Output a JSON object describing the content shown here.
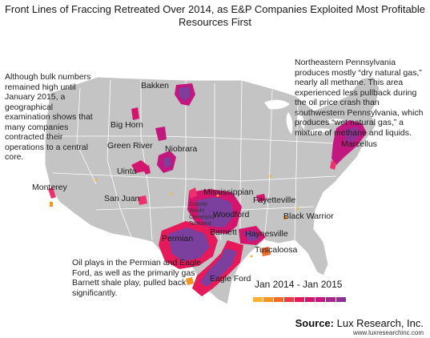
{
  "title": "Front Lines of Fraccing Retreated Over 2014, as E&P Companies Exploited Most Profitable Resources First",
  "notes": {
    "left": "Although bulk numbers remained high until January 2015, a geographical examination shows that many companies contracted their operations to a central core.",
    "right": "Northeastern Pennsylvania produces mostly “dry natural gas,” nearly all methane. This area experienced less pullback during the oil price crash than southwestern Pennsylvania, which produces “wet natural gas,” a mixture of methane and liquids.",
    "bottom": "Oil plays in the Permian and Eagle Ford, as well as the primarily gas Barnett shale play, pulled back significantly."
  },
  "plays": {
    "bakken": "Bakken",
    "big_horn": "Big Horn",
    "green_river": "Green River",
    "niobrara": "Niobrara",
    "uinta": "Uinta",
    "monterey": "Monterey",
    "san_juan": "San Juan",
    "mississippian": "Mississippian",
    "granite_wash": "Granite Wash/ Cleveland/ Tonkawa",
    "woodford": "Woodford",
    "fayetteville": "Fayetteville",
    "black_warrior": "Black Warrior",
    "permian": "Permian",
    "barnett": "Barnett",
    "haynesville": "Haynesville",
    "tuscaloosa": "Tuscaloosa",
    "eagle_ford": "Eagle Ford",
    "marcellus": "Marcellus"
  },
  "legend": {
    "label": "Jan 2014 - Jan 2015",
    "colors": [
      "#f9b233",
      "#f7941d",
      "#f26a2b",
      "#ee3a43",
      "#e6195a",
      "#d4156e",
      "#c2177f",
      "#a8278d",
      "#8e3292"
    ]
  },
  "source": {
    "prefix": "Source:",
    "name": "Lux Research, Inc.",
    "url": "www.luxresearchinc.com"
  },
  "colors": {
    "land": "#c4c4c4",
    "border": "#ffffff",
    "play_purple": "#7b3f9e",
    "play_magenta": "#d81b7a",
    "play_pink": "#f0306a",
    "play_orange": "#f7941d"
  }
}
